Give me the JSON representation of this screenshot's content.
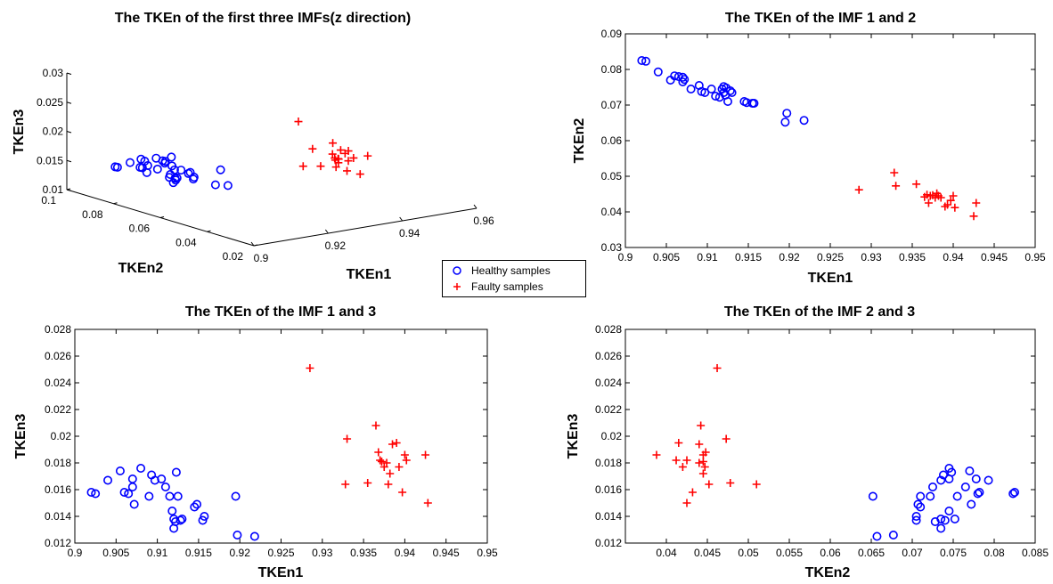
{
  "colors": {
    "healthy": "#0000ff",
    "faulty": "#ff0000",
    "axis": "#000000"
  },
  "legend": {
    "healthy_label": "Healthy samples",
    "faulty_label": "Faulty samples",
    "placement": "center"
  },
  "chart_data": [
    {
      "type": "scatter3d",
      "title": "The TKEn of the first three IMFs(z direction)",
      "xlabel": "TKEn1",
      "ylabel": "TKEn2",
      "zlabel": "TKEn3",
      "xlim": [
        0.9,
        0.96
      ],
      "ylim": [
        0.02,
        0.1
      ],
      "zlim": [
        0.01,
        0.03
      ],
      "xticks": [
        "0.9",
        "0.92",
        "0.94",
        "0.96"
      ],
      "yticks": [
        "0.02",
        "0.04",
        "0.06",
        "0.08",
        "0.1"
      ],
      "zticks": [
        "0.01",
        "0.015",
        "0.02",
        "0.025",
        "0.03"
      ],
      "grid": false,
      "series": [
        {
          "name": "Healthy samples",
          "marker": "circle",
          "source": "healthy_points"
        },
        {
          "name": "Faulty samples",
          "marker": "plus",
          "source": "faulty_points"
        }
      ]
    },
    {
      "type": "scatter",
      "title": "The TKEn of the IMF 1 and 2",
      "xlabel": "TKEn1",
      "ylabel": "TKEn2",
      "xlim": [
        0.9,
        0.95
      ],
      "ylim": [
        0.03,
        0.09
      ],
      "xticks": [
        "0.9",
        "0.905",
        "0.91",
        "0.915",
        "0.92",
        "0.925",
        "0.93",
        "0.935",
        "0.94",
        "0.945",
        "0.95"
      ],
      "yticks": [
        "0.03",
        "0.04",
        "0.05",
        "0.06",
        "0.07",
        "0.08",
        "0.09"
      ],
      "grid": false,
      "series": [
        {
          "name": "Healthy samples",
          "x_dim": 0,
          "y_dim": 1
        },
        {
          "name": "Faulty samples",
          "x_dim": 0,
          "y_dim": 1
        }
      ]
    },
    {
      "type": "scatter",
      "title": "The TKEn of the IMF 1 and 3",
      "xlabel": "TKEn1",
      "ylabel": "TKEn3",
      "xlim": [
        0.9,
        0.95
      ],
      "ylim": [
        0.012,
        0.028
      ],
      "xticks": [
        "0.9",
        "0.905",
        "0.91",
        "0.915",
        "0.92",
        "0.925",
        "0.93",
        "0.935",
        "0.94",
        "0.945",
        "0.95"
      ],
      "yticks": [
        "0.012",
        "0.014",
        "0.016",
        "0.018",
        "0.02",
        "0.022",
        "0.024",
        "0.026",
        "0.028"
      ],
      "grid": false,
      "series": [
        {
          "name": "Healthy samples",
          "x_dim": 0,
          "y_dim": 2
        },
        {
          "name": "Faulty samples",
          "x_dim": 0,
          "y_dim": 2
        }
      ]
    },
    {
      "type": "scatter",
      "title": "The TKEn of the IMF 2 and 3",
      "xlabel": "TKEn2",
      "ylabel": "TKEn3",
      "xlim": [
        0.035,
        0.085
      ],
      "ylim": [
        0.012,
        0.028
      ],
      "xticks": [
        "0.04",
        "0.045",
        "0.05",
        "0.055",
        "0.06",
        "0.065",
        "0.07",
        "0.075",
        "0.08",
        "0.085"
      ],
      "yticks": [
        "0.012",
        "0.014",
        "0.016",
        "0.018",
        "0.02",
        "0.022",
        "0.024",
        "0.026",
        "0.028"
      ],
      "grid": false,
      "series": [
        {
          "name": "Healthy samples",
          "x_dim": 1,
          "y_dim": 2
        },
        {
          "name": "Faulty samples",
          "x_dim": 1,
          "y_dim": 2
        }
      ]
    }
  ],
  "healthy_points": [
    [
      0.902,
      0.0825,
      0.0158
    ],
    [
      0.9025,
      0.0823,
      0.0157
    ],
    [
      0.904,
      0.0793,
      0.0167
    ],
    [
      0.9055,
      0.077,
      0.0174
    ],
    [
      0.906,
      0.0782,
      0.0158
    ],
    [
      0.9065,
      0.078,
      0.0157
    ],
    [
      0.907,
      0.0765,
      0.0162
    ],
    [
      0.907,
      0.0778,
      0.0168
    ],
    [
      0.9072,
      0.0772,
      0.0149
    ],
    [
      0.908,
      0.0745,
      0.0176
    ],
    [
      0.909,
      0.0755,
      0.0155
    ],
    [
      0.9093,
      0.0738,
      0.0171
    ],
    [
      0.9097,
      0.0735,
      0.0167
    ],
    [
      0.9105,
      0.0745,
      0.0168
    ],
    [
      0.911,
      0.0725,
      0.0162
    ],
    [
      0.9115,
      0.0722,
      0.0155
    ],
    [
      0.9118,
      0.0745,
      0.0144
    ],
    [
      0.912,
      0.0752,
      0.0138
    ],
    [
      0.912,
      0.0735,
      0.0131
    ],
    [
      0.9122,
      0.0728,
      0.0136
    ],
    [
      0.9123,
      0.0748,
      0.0173
    ],
    [
      0.9125,
      0.071,
      0.0155
    ],
    [
      0.9128,
      0.074,
      0.0137
    ],
    [
      0.913,
      0.0735,
      0.0138
    ],
    [
      0.9145,
      0.071,
      0.0147
    ],
    [
      0.9148,
      0.0707,
      0.0149
    ],
    [
      0.9155,
      0.0705,
      0.0137
    ],
    [
      0.9157,
      0.0705,
      0.014
    ],
    [
      0.9195,
      0.0652,
      0.0155
    ],
    [
      0.9197,
      0.0677,
      0.0126
    ],
    [
      0.9218,
      0.0657,
      0.0125
    ]
  ],
  "faulty_points": [
    [
      0.9285,
      0.0462,
      0.0251
    ],
    [
      0.9328,
      0.051,
      0.0164
    ],
    [
      0.933,
      0.0473,
      0.0198
    ],
    [
      0.9355,
      0.0478,
      0.0165
    ],
    [
      0.9365,
      0.0442,
      0.0208
    ],
    [
      0.9368,
      0.0448,
      0.0188
    ],
    [
      0.937,
      0.0425,
      0.0182
    ],
    [
      0.9372,
      0.0445,
      0.0181
    ],
    [
      0.9375,
      0.0447,
      0.0177
    ],
    [
      0.9378,
      0.044,
      0.018
    ],
    [
      0.938,
      0.0452,
      0.0164
    ],
    [
      0.9382,
      0.0445,
      0.0172
    ],
    [
      0.9385,
      0.044,
      0.0194
    ],
    [
      0.939,
      0.0415,
      0.0195
    ],
    [
      0.9393,
      0.042,
      0.0177
    ],
    [
      0.9397,
      0.0432,
      0.0158
    ],
    [
      0.94,
      0.0445,
      0.0186
    ],
    [
      0.9402,
      0.0412,
      0.0182
    ],
    [
      0.9425,
      0.0388,
      0.0186
    ],
    [
      0.9428,
      0.0425,
      0.015
    ]
  ]
}
